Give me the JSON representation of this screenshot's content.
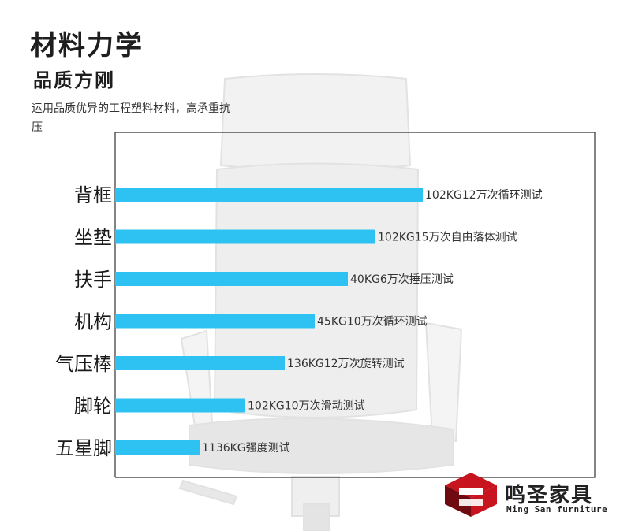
{
  "header": {
    "title": "材料力学",
    "subtitle": "品质方刚",
    "description": "运用品质优异的工程塑料材料，高承重抗压"
  },
  "brand": {
    "name_cn": "鸣圣家具",
    "name_en": "Ming San furniture",
    "logo_color": "#c8141e",
    "logo_dark": "#6e0a10"
  },
  "colors": {
    "bar": "#2ec2f2",
    "frame": "#333333",
    "label": "#1a1a1a",
    "value_label": "#333333"
  },
  "chart_data": {
    "type": "bar",
    "orientation": "horizontal",
    "grid": false,
    "legend": "none",
    "categories": [
      "背框",
      "坐垫",
      "扶手",
      "机构",
      "气压棒",
      "脚轮",
      "五星脚"
    ],
    "values": [
      390,
      330,
      295,
      253,
      215,
      165,
      107
    ],
    "data_labels": [
      "102KG12万次循环测试",
      "102KG15万次自由落体测试",
      "40KG6万次捶压测试",
      "45KG10万次循环测试",
      "136KG12万次旋转测试",
      "102KG10万次滑动测试",
      "1136KG强度测试"
    ],
    "xlim": [
      0,
      608
    ]
  }
}
